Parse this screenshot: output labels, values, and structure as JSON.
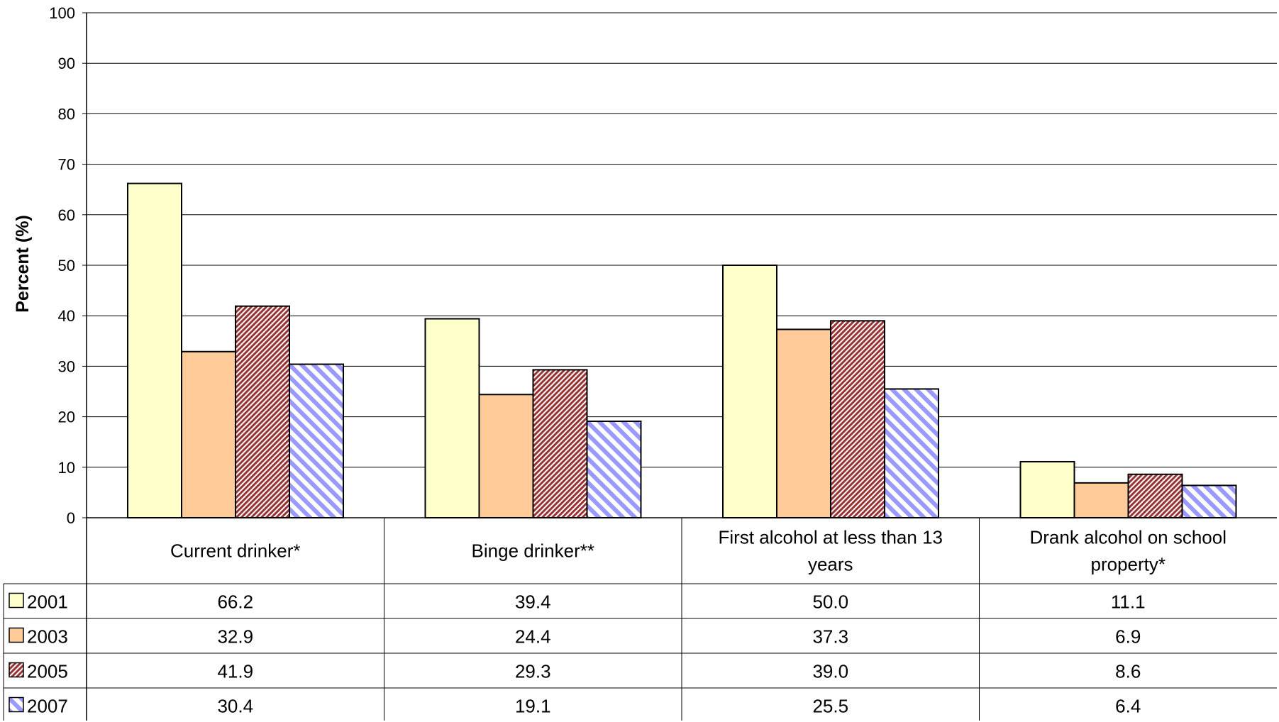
{
  "chart_data": {
    "type": "bar",
    "title": "",
    "xlabel": "",
    "ylabel": "Percent (%)",
    "ylim": [
      0,
      100
    ],
    "yticks": [
      "0",
      "10",
      "20",
      "30",
      "40",
      "50",
      "60",
      "70",
      "80",
      "90",
      "100"
    ],
    "grid": true,
    "legend_placement": "data-table-left",
    "categories": [
      "Current drinker*",
      "Binge drinker**",
      "First alcohol at less than 13 years",
      "Drank alcohol on school property*"
    ],
    "category_lines": [
      [
        "Current drinker*"
      ],
      [
        "Binge drinker**"
      ],
      [
        "First alcohol at less than 13",
        "years"
      ],
      [
        "Drank alcohol on school",
        "property*"
      ]
    ],
    "series": [
      {
        "name": "2001",
        "values": [
          66.2,
          39.4,
          50.0,
          11.1
        ],
        "labels": [
          "66.2",
          "39.4",
          "50.0",
          "11.1"
        ],
        "color": "#FFFFCC",
        "pattern": "solid"
      },
      {
        "name": "2003",
        "values": [
          32.9,
          24.4,
          37.3,
          6.9
        ],
        "labels": [
          "32.9",
          "24.4",
          "37.3",
          "6.9"
        ],
        "color": "#FFCC99",
        "pattern": "solid"
      },
      {
        "name": "2005",
        "values": [
          41.9,
          29.3,
          39.0,
          8.6
        ],
        "labels": [
          "41.9",
          "29.3",
          "39.0",
          "8.6"
        ],
        "color": "#993333",
        "pattern": "dark-diagonal-hatch"
      },
      {
        "name": "2007",
        "values": [
          30.4,
          19.1,
          25.5,
          6.4
        ],
        "labels": [
          "30.4",
          "19.1",
          "25.5",
          "6.4"
        ],
        "color": "#9999FF",
        "pattern": "wide-diagonal-stripe"
      }
    ]
  }
}
